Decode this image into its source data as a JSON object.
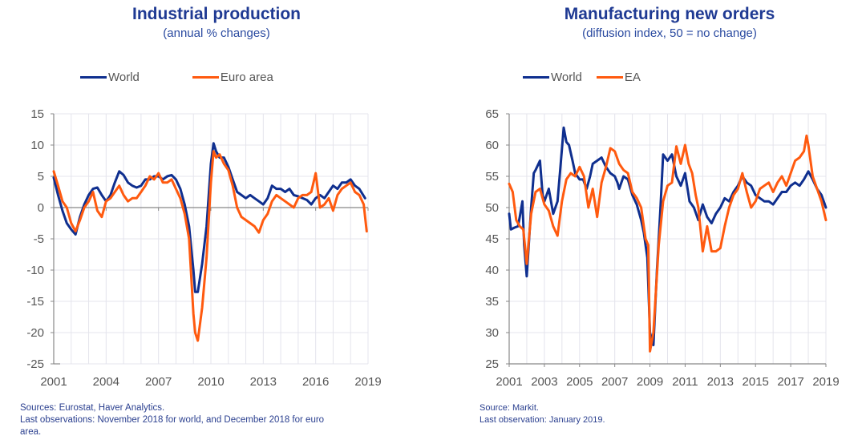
{
  "colors": {
    "world": "#0f2f8f",
    "euro": "#ff5a0f",
    "title": "#1f3a93",
    "grid": "#e4e4ec",
    "axis": "#888888"
  },
  "chart_data": [
    {
      "type": "line",
      "title": "Industrial production",
      "subtitle": "(annual % changes)",
      "xlabel": "",
      "ylabel": "",
      "xlim": [
        2001,
        2019
      ],
      "ylim": [
        -25,
        15
      ],
      "yticks": [
        "15",
        "10",
        "5",
        "0",
        "-5",
        "-10",
        "-15",
        "-20",
        "-25"
      ],
      "ytick_values": [
        15,
        10,
        5,
        0,
        -5,
        -10,
        -15,
        -20,
        -25
      ],
      "xticks": [
        "2001",
        "2004",
        "2007",
        "2010",
        "2013",
        "2016",
        "2019"
      ],
      "xtick_values": [
        2001,
        2004,
        2007,
        2010,
        2013,
        2016,
        2019
      ],
      "grid": true,
      "zero_line": true,
      "legend": "top",
      "series": [
        {
          "name": "World",
          "x": [
            2001.0,
            2001.25,
            2001.5,
            2001.75,
            2002.0,
            2002.25,
            2002.5,
            2002.75,
            2003.0,
            2003.25,
            2003.5,
            2003.75,
            2004.0,
            2004.25,
            2004.5,
            2004.75,
            2005.0,
            2005.25,
            2005.5,
            2005.75,
            2006.0,
            2006.25,
            2006.5,
            2006.75,
            2007.0,
            2007.25,
            2007.5,
            2007.75,
            2008.0,
            2008.25,
            2008.5,
            2008.75,
            2009.0,
            2009.1,
            2009.25,
            2009.5,
            2009.75,
            2010.0,
            2010.15,
            2010.3,
            2010.5,
            2010.75,
            2011.0,
            2011.25,
            2011.5,
            2011.75,
            2012.0,
            2012.25,
            2012.5,
            2012.75,
            2013.0,
            2013.25,
            2013.5,
            2013.75,
            2014.0,
            2014.25,
            2014.5,
            2014.75,
            2015.0,
            2015.25,
            2015.5,
            2015.75,
            2016.0,
            2016.25,
            2016.5,
            2016.75,
            2017.0,
            2017.25,
            2017.5,
            2017.75,
            2018.0,
            2018.25,
            2018.5,
            2018.83
          ],
          "values": [
            4.8,
            2.0,
            -0.5,
            -2.5,
            -3.5,
            -4.3,
            -1.5,
            0.5,
            2.0,
            3.0,
            3.2,
            2.0,
            1.0,
            2.0,
            4.0,
            5.8,
            5.2,
            4.0,
            3.5,
            3.2,
            3.5,
            4.5,
            4.5,
            5.0,
            5.0,
            4.5,
            5.0,
            5.2,
            4.5,
            3.0,
            0.5,
            -3.0,
            -10.0,
            -13.5,
            -13.5,
            -9.0,
            -3.0,
            7.0,
            10.3,
            9.0,
            8.0,
            8.0,
            6.5,
            4.5,
            2.5,
            2.0,
            1.5,
            2.0,
            1.5,
            1.0,
            0.5,
            1.5,
            3.5,
            3.0,
            3.0,
            2.5,
            3.0,
            2.0,
            1.8,
            1.5,
            1.2,
            0.5,
            1.5,
            2.0,
            1.5,
            2.5,
            3.5,
            3.0,
            4.0,
            4.0,
            4.5,
            3.5,
            3.0,
            1.5
          ]
        },
        {
          "name": "Euro area",
          "x": [
            2001.0,
            2001.25,
            2001.5,
            2001.75,
            2002.0,
            2002.25,
            2002.5,
            2002.75,
            2003.0,
            2003.25,
            2003.5,
            2003.75,
            2004.0,
            2004.25,
            2004.5,
            2004.75,
            2005.0,
            2005.25,
            2005.5,
            2005.75,
            2006.0,
            2006.25,
            2006.5,
            2006.75,
            2007.0,
            2007.25,
            2007.5,
            2007.75,
            2008.0,
            2008.25,
            2008.5,
            2008.75,
            2009.0,
            2009.1,
            2009.25,
            2009.5,
            2009.75,
            2010.0,
            2010.15,
            2010.3,
            2010.5,
            2010.75,
            2011.0,
            2011.25,
            2011.5,
            2011.75,
            2012.0,
            2012.25,
            2012.5,
            2012.75,
            2013.0,
            2013.25,
            2013.5,
            2013.75,
            2014.0,
            2014.25,
            2014.5,
            2014.75,
            2015.0,
            2015.25,
            2015.5,
            2015.75,
            2016.0,
            2016.25,
            2016.5,
            2016.75,
            2017.0,
            2017.25,
            2017.5,
            2017.75,
            2018.0,
            2018.25,
            2018.5,
            2018.75,
            2018.92
          ],
          "values": [
            5.8,
            3.5,
            1.0,
            0.0,
            -2.5,
            -3.8,
            -2.0,
            0.0,
            1.0,
            2.5,
            -0.5,
            -1.5,
            1.0,
            1.5,
            2.5,
            3.5,
            2.0,
            1.0,
            1.5,
            1.5,
            2.5,
            3.5,
            5.0,
            4.5,
            5.5,
            4.0,
            4.0,
            4.5,
            3.0,
            1.5,
            -1.0,
            -5.0,
            -17.0,
            -20.0,
            -21.3,
            -16.0,
            -8.0,
            4.0,
            9.0,
            8.0,
            8.5,
            7.0,
            6.0,
            3.5,
            0.0,
            -1.5,
            -2.0,
            -2.5,
            -3.0,
            -4.0,
            -2.0,
            -1.0,
            1.0,
            2.0,
            1.5,
            1.0,
            0.5,
            0.0,
            1.5,
            2.0,
            2.0,
            2.5,
            5.5,
            0.0,
            0.5,
            1.5,
            -0.5,
            2.0,
            3.0,
            3.5,
            4.0,
            2.5,
            2.0,
            0.5,
            -3.8
          ]
        }
      ]
    },
    {
      "type": "line",
      "title": "Manufacturing new orders",
      "subtitle": "(diffusion index, 50 = no change)",
      "xlabel": "",
      "ylabel": "",
      "xlim": [
        2001,
        2019
      ],
      "ylim": [
        25,
        65
      ],
      "yticks": [
        "65",
        "60",
        "55",
        "50",
        "45",
        "40",
        "35",
        "30",
        "25"
      ],
      "ytick_values": [
        65,
        60,
        55,
        50,
        45,
        40,
        35,
        30,
        25
      ],
      "xticks": [
        "2001",
        "2003",
        "2005",
        "2007",
        "2009",
        "2011",
        "2013",
        "2015",
        "2017",
        "2019"
      ],
      "xtick_values": [
        2001,
        2003,
        2005,
        2007,
        2009,
        2011,
        2013,
        2015,
        2017,
        2019
      ],
      "grid": true,
      "legend": "top",
      "series": [
        {
          "name": "World",
          "x": [
            2001.0,
            2001.1,
            2001.3,
            2001.5,
            2001.6,
            2001.75,
            2001.85,
            2002.0,
            2002.25,
            2002.4,
            2002.5,
            2002.75,
            2002.9,
            2003.0,
            2003.25,
            2003.5,
            2003.75,
            2003.9,
            2004.1,
            2004.25,
            2004.4,
            2004.6,
            2004.75,
            2005.0,
            2005.2,
            2005.4,
            2005.6,
            2005.75,
            2006.0,
            2006.25,
            2006.5,
            2006.75,
            2007.0,
            2007.15,
            2007.25,
            2007.5,
            2007.75,
            2008.0,
            2008.25,
            2008.5,
            2008.65,
            2008.85,
            2009.0,
            2009.2,
            2009.4,
            2009.6,
            2009.75,
            2010.0,
            2010.25,
            2010.5,
            2010.75,
            2011.0,
            2011.25,
            2011.5,
            2011.75,
            2012.0,
            2012.25,
            2012.5,
            2012.75,
            2013.0,
            2013.25,
            2013.5,
            2013.75,
            2014.0,
            2014.25,
            2014.5,
            2014.75,
            2015.0,
            2015.25,
            2015.5,
            2015.75,
            2016.0,
            2016.25,
            2016.5,
            2016.75,
            2017.0,
            2017.25,
            2017.5,
            2017.75,
            2018.0,
            2018.25,
            2018.5,
            2018.75,
            2019.0
          ],
          "values": [
            49.0,
            46.5,
            46.8,
            47.0,
            48.5,
            51.0,
            44.0,
            39.0,
            50.0,
            55.5,
            56.0,
            57.5,
            52.0,
            51.0,
            53.0,
            49.0,
            51.0,
            56.0,
            62.8,
            60.5,
            60.0,
            57.5,
            55.5,
            54.5,
            54.5,
            53.0,
            55.0,
            57.0,
            57.5,
            58.0,
            56.5,
            55.5,
            55.0,
            54.0,
            53.0,
            55.0,
            54.5,
            52.0,
            50.5,
            48.0,
            46.0,
            42.0,
            30.0,
            28.0,
            40.0,
            50.0,
            58.5,
            57.5,
            58.5,
            55.0,
            53.5,
            55.5,
            51.0,
            50.0,
            48.0,
            50.5,
            48.5,
            47.5,
            49.0,
            50.0,
            51.5,
            51.0,
            52.5,
            53.5,
            55.0,
            54.0,
            53.5,
            52.0,
            51.5,
            51.0,
            51.0,
            50.5,
            51.5,
            52.5,
            52.5,
            53.5,
            54.0,
            53.5,
            54.5,
            55.8,
            54.5,
            53.0,
            52.0,
            50.0
          ]
        },
        {
          "name": "EA",
          "x": [
            2001.0,
            2001.2,
            2001.4,
            2001.6,
            2001.8,
            2002.0,
            2002.25,
            2002.5,
            2002.75,
            2003.0,
            2003.25,
            2003.5,
            2003.75,
            2004.0,
            2004.25,
            2004.5,
            2004.75,
            2005.0,
            2005.25,
            2005.5,
            2005.75,
            2006.0,
            2006.25,
            2006.5,
            2006.75,
            2007.0,
            2007.25,
            2007.5,
            2007.75,
            2008.0,
            2008.25,
            2008.5,
            2008.75,
            2008.9,
            2009.0,
            2009.2,
            2009.5,
            2009.75,
            2010.0,
            2010.25,
            2010.5,
            2010.75,
            2011.0,
            2011.2,
            2011.4,
            2011.6,
            2011.75,
            2012.0,
            2012.25,
            2012.5,
            2012.75,
            2013.0,
            2013.25,
            2013.5,
            2013.75,
            2014.0,
            2014.25,
            2014.5,
            2014.75,
            2015.0,
            2015.25,
            2015.5,
            2015.75,
            2016.0,
            2016.25,
            2016.5,
            2016.75,
            2017.0,
            2017.25,
            2017.5,
            2017.75,
            2017.9,
            2018.0,
            2018.25,
            2018.5,
            2018.75,
            2019.0
          ],
          "values": [
            53.8,
            52.5,
            48.0,
            47.0,
            46.5,
            41.0,
            49.0,
            52.5,
            53.0,
            50.5,
            49.5,
            47.0,
            45.5,
            51.0,
            54.5,
            55.5,
            55.0,
            56.5,
            55.0,
            50.0,
            53.0,
            48.5,
            54.0,
            56.5,
            59.5,
            59.0,
            57.0,
            56.0,
            55.5,
            52.5,
            51.5,
            50.0,
            45.0,
            44.0,
            27.0,
            30.0,
            44.0,
            51.0,
            53.5,
            54.0,
            59.8,
            57.0,
            60.0,
            57.0,
            55.5,
            52.0,
            50.0,
            43.0,
            47.0,
            43.0,
            43.0,
            43.5,
            47.0,
            50.0,
            52.0,
            53.0,
            55.5,
            52.5,
            50.0,
            51.0,
            53.0,
            53.5,
            54.0,
            52.5,
            54.0,
            55.0,
            53.5,
            55.5,
            57.5,
            58.0,
            59.0,
            61.5,
            60.0,
            55.0,
            53.0,
            51.0,
            48.0
          ]
        }
      ]
    }
  ],
  "left": {
    "title": "Industrial production",
    "subtitle": "(annual % changes)",
    "legend": [
      "World",
      "Euro area"
    ],
    "notes": [
      "Sources: Eurostat, Haver Analytics.",
      "Last observations: November 2018 for world, and December 2018 for euro",
      "area."
    ]
  },
  "right": {
    "title": "Manufacturing new orders",
    "subtitle": "(diffusion index, 50 = no change)",
    "legend": [
      "World",
      "EA"
    ],
    "notes": [
      "Source: Markit.",
      "Last observation: January 2019."
    ]
  }
}
